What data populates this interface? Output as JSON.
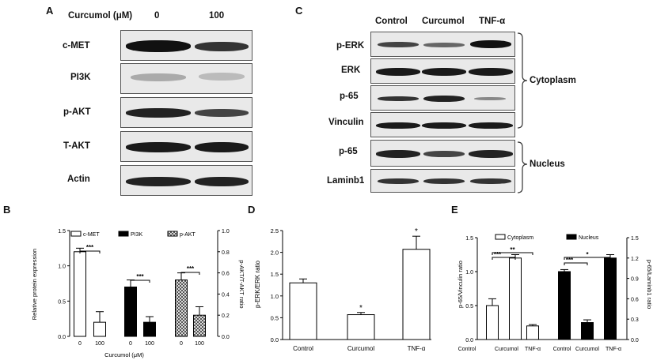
{
  "panels": {
    "A": "A",
    "B": "B",
    "C": "C",
    "D": "D",
    "E": "E"
  },
  "panelA": {
    "header": "Curcumol (μM)",
    "cols": [
      "0",
      "100"
    ],
    "rows": [
      "c-MET",
      "PI3K",
      "p-AKT",
      "T-AKT",
      "Actin"
    ]
  },
  "panelC": {
    "cols": [
      "Control",
      "Curcumol",
      "TNF-α"
    ],
    "rows": [
      "p-ERK",
      "ERK",
      "p-65",
      "Vinculin",
      "p-65",
      "Laminb1"
    ],
    "groups": [
      "Cytoplasm",
      "Nucleus"
    ]
  },
  "chart_data": [
    {
      "panel": "B",
      "type": "bar",
      "legend": [
        "c-MET",
        "PI3K",
        "p-AKT"
      ],
      "ylabel": "Relative protein expression",
      "y2label": "p-AKT/T-AKT ratio",
      "xlabel": "Curcumol (μM)",
      "ylim": [
        0,
        1.5
      ],
      "yticks": [
        "0.0",
        "0.5",
        "1.0",
        "1.5"
      ],
      "y2lim": [
        0,
        1.0
      ],
      "y2ticks": [
        "0.0",
        "0.2",
        "0.4",
        "0.6",
        "0.8",
        "1.0"
      ],
      "categories": [
        "0",
        "100",
        "0",
        "100",
        "0",
        "100"
      ],
      "values": [
        1.2,
        0.2,
        0.7,
        0.2,
        0.8,
        0.3
      ],
      "errors": [
        0.05,
        0.15,
        0.1,
        0.08,
        0.1,
        0.12
      ],
      "sig": [
        "***",
        "***",
        "***"
      ]
    },
    {
      "panel": "D",
      "type": "bar",
      "ylabel": "p-ERK/ERK ratio",
      "ylim": [
        0,
        2.5
      ],
      "yticks": [
        "0.0",
        "0.5",
        "1.0",
        "1.5",
        "2.0",
        "2.5"
      ],
      "categories": [
        "Control",
        "Curcumol",
        "TNF-α"
      ],
      "values": [
        1.3,
        0.57,
        2.07
      ],
      "errors": [
        0.09,
        0.05,
        0.3
      ],
      "sig": [
        "",
        "*",
        "*"
      ]
    },
    {
      "panel": "E",
      "type": "bar",
      "legend": [
        "Cytoplasm",
        "Nucleus"
      ],
      "ylabel": "p-65/Vinculin ratio",
      "y2label": "p-65/Laminb1 ratio",
      "ylim": [
        0,
        1.5
      ],
      "yticks": [
        "0.0",
        "0.5",
        "1.0",
        "1.5"
      ],
      "y2lim": [
        0,
        1.5
      ],
      "y2ticks": [
        "0.0",
        "0.3",
        "0.6",
        "0.9",
        "1.2",
        "1.5"
      ],
      "categories": [
        "Control",
        "Curcumol",
        "TNF-α",
        "Control",
        "Curcumol",
        "TNF-α"
      ],
      "values": [
        0.5,
        1.2,
        0.2,
        1.0,
        0.25,
        1.2
      ],
      "errors": [
        0.1,
        0.05,
        0.02,
        0.03,
        0.04,
        0.05
      ],
      "sig": [
        "***",
        "**",
        "***",
        "*"
      ]
    }
  ]
}
